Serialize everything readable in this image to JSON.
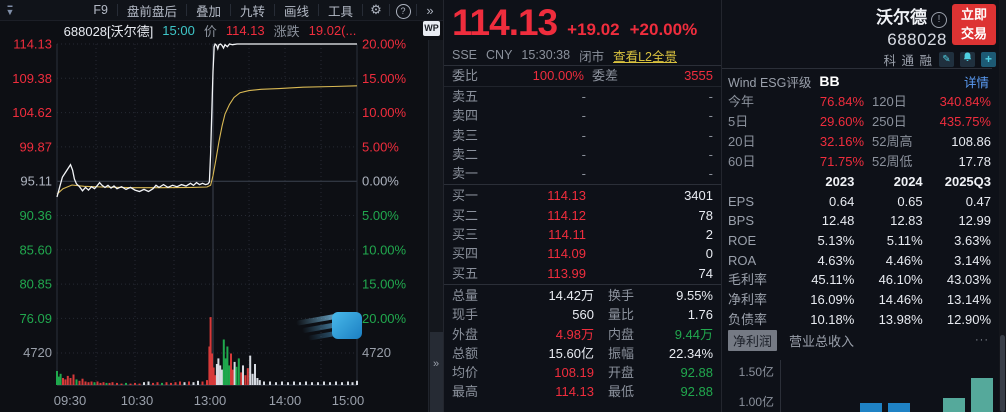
{
  "accent": {
    "red": "#ef2d3d",
    "green": "#21a84e",
    "yellow": "#d9c23f",
    "link_blue": "#5b9cf5",
    "teal": "#3ec6c8",
    "avg_line": "#d9b954",
    "price_line": "#f2f4f7"
  },
  "toolbar": {
    "items": [
      "F9",
      "盘前盘后",
      "叠加",
      "九转",
      "画线",
      "工具"
    ],
    "help_label": "?",
    "more_label": "»"
  },
  "chart_header": {
    "code_name": "688028[沃尔德]",
    "time": "15:00",
    "price_label": "价",
    "price": "114.13",
    "change_label": "涨跌",
    "change": "19.02(...",
    "wp_badge": "WP",
    "rail_more": "»"
  },
  "chart_data": {
    "type": "line",
    "title": "688028 沃尔德 分时图",
    "prev_close": "95.11",
    "left_axis": [
      {
        "t": "114.13",
        "c": "r"
      },
      {
        "t": "109.38",
        "c": "r"
      },
      {
        "t": "104.62",
        "c": "r"
      },
      {
        "t": "99.87",
        "c": "r"
      },
      {
        "t": "95.11",
        "c": "w"
      },
      {
        "t": "90.36",
        "c": "g"
      },
      {
        "t": "85.60",
        "c": "g"
      },
      {
        "t": "80.85",
        "c": "g"
      },
      {
        "t": "76.09",
        "c": "g"
      }
    ],
    "right_axis": [
      {
        "t": "20.00%",
        "c": "r"
      },
      {
        "t": "15.00%",
        "c": "r"
      },
      {
        "t": "10.00%",
        "c": "r"
      },
      {
        "t": "5.00%",
        "c": "r"
      },
      {
        "t": "0.00%",
        "c": "w"
      },
      {
        "t": "5.00%",
        "c": "g"
      },
      {
        "t": "10.00%",
        "c": "g"
      },
      {
        "t": "15.00%",
        "c": "g"
      },
      {
        "t": "20.00%",
        "c": "g"
      }
    ],
    "volume_axis_label": "4720",
    "x_ticks": [
      "09:30",
      "10:30",
      "13:00",
      "14:00",
      "15:00"
    ],
    "ylim_pct": [
      -20,
      20
    ],
    "price_line_pct": [
      [
        0,
        -2.3
      ],
      [
        0.008,
        -1.0
      ],
      [
        0.018,
        0.6
      ],
      [
        0.03,
        1.4
      ],
      [
        0.045,
        2.4
      ],
      [
        0.052,
        1.6
      ],
      [
        0.058,
        0.3
      ],
      [
        0.065,
        -0.4
      ],
      [
        0.075,
        -0.8
      ],
      [
        0.085,
        -1.4
      ],
      [
        0.095,
        -0.9
      ],
      [
        0.105,
        -1.3
      ],
      [
        0.115,
        -0.8
      ],
      [
        0.125,
        -1.1
      ],
      [
        0.135,
        -0.6
      ],
      [
        0.142,
        -0.2
      ],
      [
        0.15,
        -0.6
      ],
      [
        0.16,
        -0.9
      ],
      [
        0.17,
        -0.6
      ],
      [
        0.18,
        -1.0
      ],
      [
        0.19,
        -0.7
      ],
      [
        0.2,
        -1.1
      ],
      [
        0.215,
        -0.8
      ],
      [
        0.23,
        -1.2
      ],
      [
        0.245,
        -0.9
      ],
      [
        0.26,
        -1.3
      ],
      [
        0.275,
        -1.5
      ],
      [
        0.29,
        -1.2
      ],
      [
        0.305,
        -1.5
      ],
      [
        0.32,
        -1.1
      ],
      [
        0.33,
        -0.6
      ],
      [
        0.34,
        -0.9
      ],
      [
        0.355,
        -0.5
      ],
      [
        0.37,
        -0.9
      ],
      [
        0.385,
        -0.6
      ],
      [
        0.4,
        -0.8
      ],
      [
        0.415,
        -0.5
      ],
      [
        0.43,
        -0.7
      ],
      [
        0.445,
        -0.3
      ],
      [
        0.455,
        -0.6
      ],
      [
        0.465,
        -0.2
      ],
      [
        0.475,
        -0.5
      ],
      [
        0.485,
        -0.3
      ],
      [
        0.495,
        -0.5
      ],
      [
        0.503,
        -0.4
      ],
      [
        0.508,
        -0.1
      ],
      [
        0.512,
        4.0
      ],
      [
        0.516,
        10.0
      ],
      [
        0.52,
        16.0
      ],
      [
        0.524,
        19.6
      ],
      [
        0.527,
        20.0
      ],
      [
        0.532,
        19.8
      ],
      [
        0.536,
        19.3
      ],
      [
        0.54,
        19.9
      ],
      [
        0.545,
        20.0
      ],
      [
        0.55,
        19.8
      ],
      [
        0.555,
        19.4
      ],
      [
        0.56,
        19.9
      ],
      [
        0.568,
        19.6
      ],
      [
        0.575,
        20.0
      ],
      [
        0.585,
        19.9
      ],
      [
        0.6,
        20.0
      ],
      [
        1.0,
        20.0
      ]
    ],
    "avg_line_pct": [
      [
        0,
        -1.9
      ],
      [
        0.02,
        -1.1
      ],
      [
        0.05,
        -0.55
      ],
      [
        0.09,
        -0.75
      ],
      [
        0.15,
        -0.85
      ],
      [
        0.25,
        -0.95
      ],
      [
        0.35,
        -0.95
      ],
      [
        0.45,
        -0.9
      ],
      [
        0.5,
        -0.85
      ],
      [
        0.512,
        -0.6
      ],
      [
        0.52,
        0.8
      ],
      [
        0.53,
        3.2
      ],
      [
        0.54,
        5.8
      ],
      [
        0.55,
        8.0
      ],
      [
        0.56,
        9.8
      ],
      [
        0.575,
        11.2
      ],
      [
        0.59,
        12.2
      ],
      [
        0.61,
        12.9
      ],
      [
        0.64,
        13.2
      ],
      [
        0.68,
        13.4
      ],
      [
        0.74,
        13.5
      ],
      [
        0.82,
        13.7
      ],
      [
        0.92,
        13.8
      ],
      [
        1.0,
        13.9
      ]
    ],
    "volume_bars": [
      [
        0,
        0.2,
        "g"
      ],
      [
        0.006,
        0.12,
        "g"
      ],
      [
        0.012,
        0.16,
        "g"
      ],
      [
        0.02,
        0.1,
        "r"
      ],
      [
        0.028,
        0.08,
        "r"
      ],
      [
        0.036,
        0.13,
        "r"
      ],
      [
        0.045,
        0.1,
        "r"
      ],
      [
        0.055,
        0.15,
        "r"
      ],
      [
        0.065,
        0.08,
        "g"
      ],
      [
        0.075,
        0.06,
        "r"
      ],
      [
        0.085,
        0.09,
        "r"
      ],
      [
        0.095,
        0.05,
        "r"
      ],
      [
        0.105,
        0.04,
        "r"
      ],
      [
        0.115,
        0.05,
        "r"
      ],
      [
        0.125,
        0.04,
        "g"
      ],
      [
        0.135,
        0.05,
        "r"
      ],
      [
        0.145,
        0.03,
        "r"
      ],
      [
        0.155,
        0.04,
        "r"
      ],
      [
        0.165,
        0.03,
        "g"
      ],
      [
        0.175,
        0.03,
        "r"
      ],
      [
        0.185,
        0.04,
        "r"
      ],
      [
        0.2,
        0.03,
        "r"
      ],
      [
        0.215,
        0.02,
        "r"
      ],
      [
        0.23,
        0.03,
        "g"
      ],
      [
        0.245,
        0.02,
        "r"
      ],
      [
        0.26,
        0.03,
        "r"
      ],
      [
        0.275,
        0.02,
        "r"
      ],
      [
        0.29,
        0.04,
        "w"
      ],
      [
        0.305,
        0.05,
        "w"
      ],
      [
        0.32,
        0.03,
        "r"
      ],
      [
        0.335,
        0.04,
        "r"
      ],
      [
        0.35,
        0.03,
        "g"
      ],
      [
        0.365,
        0.04,
        "r"
      ],
      [
        0.38,
        0.03,
        "r"
      ],
      [
        0.395,
        0.04,
        "r"
      ],
      [
        0.41,
        0.05,
        "r"
      ],
      [
        0.425,
        0.04,
        "w"
      ],
      [
        0.44,
        0.05,
        "r"
      ],
      [
        0.455,
        0.04,
        "w"
      ],
      [
        0.47,
        0.06,
        "w"
      ],
      [
        0.485,
        0.05,
        "r"
      ],
      [
        0.5,
        0.07,
        "r"
      ],
      [
        0.508,
        0.55,
        "r"
      ],
      [
        0.512,
        0.97,
        "r"
      ],
      [
        0.517,
        0.45,
        "r"
      ],
      [
        0.522,
        0.25,
        "r"
      ],
      [
        0.528,
        0.14,
        "r"
      ],
      [
        0.533,
        0.3,
        "w"
      ],
      [
        0.538,
        0.38,
        "w"
      ],
      [
        0.544,
        0.28,
        "w"
      ],
      [
        0.55,
        0.22,
        "w"
      ],
      [
        0.556,
        0.65,
        "g"
      ],
      [
        0.562,
        0.38,
        "g"
      ],
      [
        0.568,
        0.55,
        "g"
      ],
      [
        0.574,
        0.28,
        "g"
      ],
      [
        0.58,
        0.45,
        "r"
      ],
      [
        0.586,
        0.22,
        "r"
      ],
      [
        0.592,
        0.33,
        "w"
      ],
      [
        0.598,
        0.26,
        "g"
      ],
      [
        0.606,
        0.38,
        "g"
      ],
      [
        0.614,
        0.18,
        "r"
      ],
      [
        0.62,
        0.28,
        "w"
      ],
      [
        0.628,
        0.14,
        "r"
      ],
      [
        0.636,
        0.24,
        "r"
      ],
      [
        0.644,
        0.42,
        "w"
      ],
      [
        0.652,
        0.16,
        "w"
      ],
      [
        0.66,
        0.3,
        "w"
      ],
      [
        0.668,
        0.1,
        "w"
      ],
      [
        0.676,
        0.07,
        "w"
      ],
      [
        0.69,
        0.05,
        "w"
      ],
      [
        0.71,
        0.05,
        "w"
      ],
      [
        0.73,
        0.04,
        "w"
      ],
      [
        0.75,
        0.05,
        "w"
      ],
      [
        0.77,
        0.04,
        "w"
      ],
      [
        0.79,
        0.05,
        "w"
      ],
      [
        0.81,
        0.04,
        "w"
      ],
      [
        0.83,
        0.05,
        "w"
      ],
      [
        0.85,
        0.04,
        "w"
      ],
      [
        0.87,
        0.04,
        "w"
      ],
      [
        0.89,
        0.05,
        "w"
      ],
      [
        0.91,
        0.04,
        "w"
      ],
      [
        0.93,
        0.05,
        "w"
      ],
      [
        0.95,
        0.04,
        "w"
      ],
      [
        0.97,
        0.05,
        "w"
      ],
      [
        0.985,
        0.04,
        "w"
      ],
      [
        1.0,
        0.06,
        "w"
      ]
    ]
  },
  "quote": {
    "price": "114.13",
    "change": "+19.02",
    "change_pct": "+20.00%",
    "exchange": "SSE",
    "currency": "CNY",
    "time": "15:30:38",
    "status": "闭市",
    "l2_link": "查看L2全景",
    "weibi_label": "委比",
    "weibi": "100.00%",
    "weicha_label": "委差",
    "weicha": "3555",
    "asks": [
      {
        "l": "卖五",
        "p": "-",
        "v": "-"
      },
      {
        "l": "卖四",
        "p": "-",
        "v": "-"
      },
      {
        "l": "卖三",
        "p": "-",
        "v": "-"
      },
      {
        "l": "卖二",
        "p": "-",
        "v": "-"
      },
      {
        "l": "卖一",
        "p": "-",
        "v": "-"
      }
    ],
    "bids": [
      {
        "l": "买一",
        "p": "114.13",
        "v": "3401"
      },
      {
        "l": "买二",
        "p": "114.12",
        "v": "78"
      },
      {
        "l": "买三",
        "p": "114.11",
        "v": "2"
      },
      {
        "l": "买四",
        "p": "114.09",
        "v": "0"
      },
      {
        "l": "买五",
        "p": "113.99",
        "v": "74"
      }
    ],
    "stats": [
      {
        "l1": "总量",
        "v1": "14.42万",
        "c1": "w",
        "l2": "换手",
        "v2": "9.55%",
        "c2": "w"
      },
      {
        "l1": "现手",
        "v1": "560",
        "c1": "w",
        "l2": "量比",
        "v2": "1.76",
        "c2": "w"
      },
      {
        "l1": "外盘",
        "v1": "4.98万",
        "c1": "r",
        "l2": "内盘",
        "v2": "9.44万",
        "c2": "g"
      },
      {
        "l1": "总额",
        "v1": "15.60亿",
        "c1": "w",
        "l2": "振幅",
        "v2": "22.34%",
        "c2": "w"
      },
      {
        "l1": "均价",
        "v1": "108.19",
        "c1": "r",
        "l2": "开盘",
        "v2": "92.88",
        "c2": "g"
      },
      {
        "l1": "最高",
        "v1": "114.13",
        "c1": "r",
        "l2": "最低",
        "v2": "92.88",
        "c2": "g"
      }
    ]
  },
  "side": {
    "name": "沃尔德",
    "info_icon": "!",
    "code": "688028",
    "trade_line1": "立即",
    "trade_line2": "交易",
    "badges": [
      "科",
      "通",
      "融"
    ],
    "pencil_icon": "✎",
    "plus_icon": "+",
    "esg_label": "Wind ESG评级",
    "esg_rating": "BB",
    "esg_detail": "详情",
    "performance": [
      {
        "l1": "今年",
        "v1": "76.84%",
        "c1": "r",
        "l2": "120日",
        "v2": "340.84%",
        "c2": "r"
      },
      {
        "l1": "5日",
        "v1": "29.60%",
        "c1": "r",
        "l2": "250日",
        "v2": "435.75%",
        "c2": "r"
      },
      {
        "l1": "20日",
        "v1": "32.16%",
        "c1": "r",
        "l2": "52周高",
        "v2": "108.86",
        "c2": "w"
      },
      {
        "l1": "60日",
        "v1": "71.75%",
        "c1": "r",
        "l2": "52周低",
        "v2": "17.78",
        "c2": "w"
      }
    ],
    "financials": {
      "headers": [
        "",
        "2023",
        "2024",
        "2025Q3"
      ],
      "rows": [
        [
          "EPS",
          "0.64",
          "0.65",
          "0.47"
        ],
        [
          "BPS",
          "12.48",
          "12.83",
          "12.99"
        ],
        [
          "ROE",
          "5.13%",
          "5.11%",
          "3.63%"
        ],
        [
          "ROA",
          "4.63%",
          "4.46%",
          "3.14%"
        ],
        [
          "毛利率",
          "45.11%",
          "46.10%",
          "43.03%"
        ],
        [
          "净利率",
          "16.09%",
          "14.46%",
          "13.14%"
        ],
        [
          "负债率",
          "10.18%",
          "13.98%",
          "12.90%"
        ]
      ]
    },
    "tabs": [
      "净利润",
      "营业总收入"
    ],
    "tabs_more": "···",
    "mini_chart": {
      "type": "bar",
      "y_ticks": [
        "1.50亿",
        "1.00亿"
      ],
      "bars": [
        {
          "x": 138,
          "h": 9,
          "c": "b"
        },
        {
          "x": 166,
          "h": 9,
          "c": "b"
        },
        {
          "x": 221,
          "h": 14,
          "c": "t"
        },
        {
          "x": 249,
          "h": 34,
          "c": "t"
        }
      ],
      "note": "bars cut off at bottom edge"
    }
  }
}
